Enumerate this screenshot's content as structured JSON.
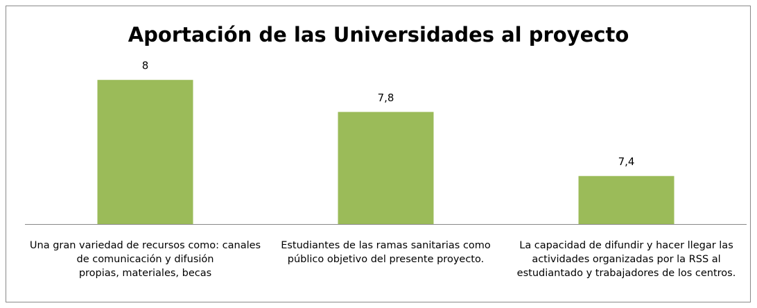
{
  "chart_data": {
    "type": "bar",
    "title": "Aportación de las Universidades al proyecto",
    "categories": [
      "Una gran variedad de recursos como: canales de comunicación y difusión\npropias, materiales, becas",
      "Estudiantes de las ramas sanitarias como público objetivo del presente proyecto.",
      "La capacidad de difundir y hacer llegar las actividades organizadas por la RSS al estudiantado y trabajadores de los centros."
    ],
    "values": [
      8,
      7.8,
      7.4
    ],
    "value_labels": [
      "8",
      "7,8",
      "7,4"
    ],
    "color": "#9bbb59",
    "ylim": [
      7.1,
      8.2
    ]
  }
}
